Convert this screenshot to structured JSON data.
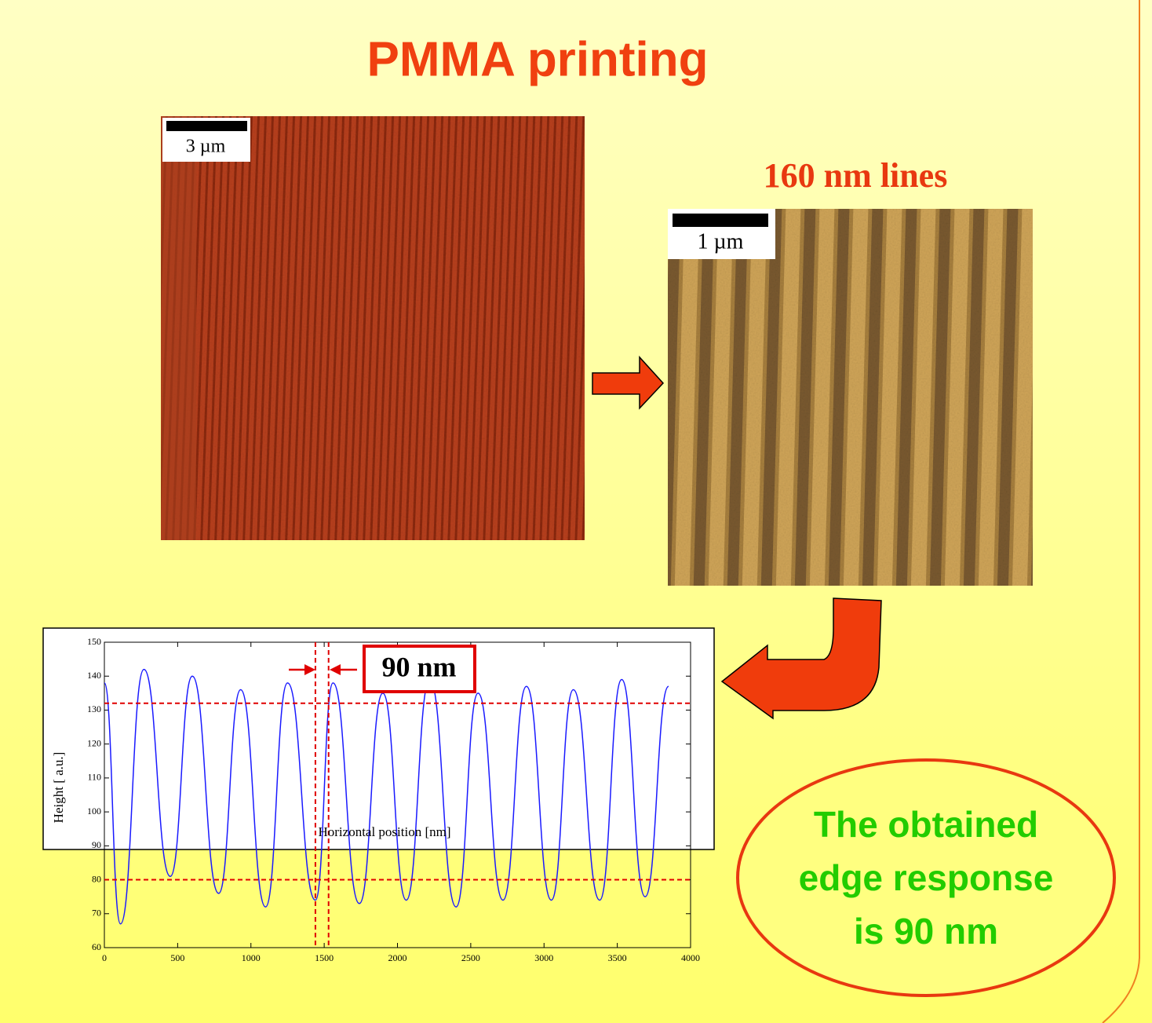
{
  "slide": {
    "title": "PMMA printing",
    "image_left_scale": "3 µm",
    "image_right_caption": "160 nm lines",
    "image_right_scale": "1 µm",
    "callout": [
      "The obtained",
      "edge response",
      "is 90 nm"
    ]
  },
  "chart_data": {
    "type": "line",
    "xlabel": "Horizontal position [nm]",
    "ylabel": "Height [  a.u.]",
    "annotation": "90 nm",
    "x": [
      0,
      110,
      270,
      450,
      600,
      780,
      930,
      1100,
      1250,
      1440,
      1560,
      1740,
      1900,
      2060,
      2220,
      2400,
      2550,
      2720,
      2880,
      3050,
      3200,
      3380,
      3530,
      3690,
      3850
    ],
    "series": [
      {
        "color": "#1a1aff",
        "values": [
          138,
          67,
          142,
          81,
          140,
          76,
          136,
          72,
          138,
          74,
          138,
          73,
          135,
          74,
          139,
          72,
          135,
          74,
          137,
          74,
          136,
          74,
          139,
          75,
          137
        ]
      }
    ],
    "xlim": [
      0,
      4000
    ],
    "xticks": [
      0,
      500,
      1000,
      1500,
      2000,
      2500,
      3000,
      3500,
      4000
    ],
    "ylim": [
      60,
      150
    ],
    "yticks": [
      60,
      70,
      80,
      90,
      100,
      110,
      120,
      130,
      140,
      150
    ],
    "reference_lines": {
      "color": "#e00000",
      "y": [
        132,
        80
      ],
      "x": [
        1440,
        1530
      ]
    }
  }
}
